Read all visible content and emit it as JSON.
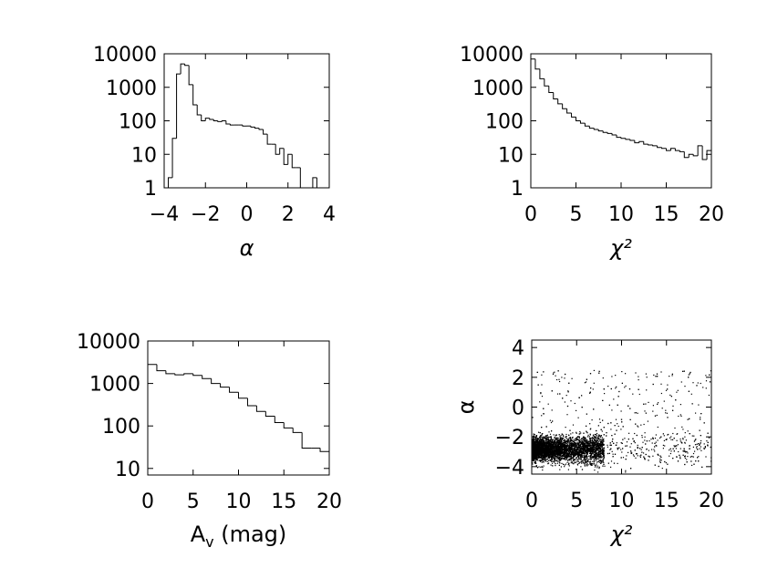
{
  "chart_data": [
    {
      "type": "bar",
      "panel": "alpha-histogram",
      "xlabel": "α",
      "ylabel": "",
      "xlim": [
        -4,
        4
      ],
      "ylim": [
        1,
        10000
      ],
      "yscale": "log",
      "xticks": [
        "−4",
        "−2",
        "0",
        "2",
        "4"
      ],
      "yticks": [
        "1",
        "10",
        "100",
        "1000",
        "10000"
      ],
      "bin_edges": [
        -4.0,
        -3.8,
        -3.6,
        -3.4,
        -3.2,
        -3.0,
        -2.8,
        -2.6,
        -2.4,
        -2.2,
        -2.0,
        -1.8,
        -1.6,
        -1.4,
        -1.2,
        -1.0,
        -0.8,
        -0.6,
        -0.4,
        -0.2,
        0.0,
        0.2,
        0.4,
        0.6,
        0.8,
        1.0,
        1.2,
        1.4,
        1.6,
        1.8,
        2.0,
        2.2,
        2.4,
        2.6,
        2.8,
        3.0,
        3.2,
        3.4,
        3.6,
        3.8,
        4.0
      ],
      "counts": [
        1,
        2,
        30,
        2500,
        5000,
        4500,
        1200,
        300,
        150,
        100,
        120,
        110,
        100,
        95,
        100,
        80,
        75,
        75,
        75,
        70,
        70,
        65,
        60,
        55,
        40,
        20,
        20,
        10,
        15,
        5,
        10,
        4,
        4,
        1,
        1,
        1,
        2,
        1,
        1,
        1
      ]
    },
    {
      "type": "bar",
      "panel": "chi2-histogram",
      "xlabel": "χ²",
      "ylabel": "",
      "xlim": [
        0,
        20
      ],
      "ylim": [
        1,
        10000
      ],
      "yscale": "log",
      "xticks": [
        "0",
        "5",
        "10",
        "15",
        "20"
      ],
      "yticks": [
        "1",
        "10",
        "100",
        "1000",
        "10000"
      ],
      "bin_edges": [
        0.0,
        0.5,
        1.0,
        1.5,
        2.0,
        2.5,
        3.0,
        3.5,
        4.0,
        4.5,
        5.0,
        5.5,
        6.0,
        6.5,
        7.0,
        7.5,
        8.0,
        8.5,
        9.0,
        9.5,
        10.0,
        10.5,
        11.0,
        11.5,
        12.0,
        12.5,
        13.0,
        13.5,
        14.0,
        14.5,
        15.0,
        15.5,
        16.0,
        16.5,
        17.0,
        17.5,
        18.0,
        18.5,
        19.0,
        19.5,
        20.0
      ],
      "counts": [
        7000,
        3500,
        1800,
        1100,
        700,
        450,
        320,
        230,
        170,
        130,
        100,
        85,
        70,
        60,
        55,
        50,
        45,
        42,
        38,
        32,
        30,
        28,
        26,
        22,
        24,
        20,
        19,
        18,
        16,
        15,
        13,
        15,
        13,
        12,
        8,
        10,
        9,
        18,
        7,
        13
      ]
    },
    {
      "type": "bar",
      "panel": "av-histogram",
      "xlabel": "Av (mag)",
      "xlabel_main": "A",
      "xlabel_sub": "v",
      "xlabel_rest": " (mag)",
      "ylabel": "",
      "xlim": [
        0,
        20
      ],
      "ylim": [
        7,
        10000
      ],
      "yscale": "log",
      "xticks": [
        "0",
        "5",
        "10",
        "15",
        "20"
      ],
      "yticks": [
        "10",
        "100",
        "1000",
        "10000"
      ],
      "bin_edges": [
        0,
        1,
        2,
        3,
        4,
        5,
        6,
        7,
        8,
        9,
        10,
        11,
        12,
        13,
        14,
        15,
        16,
        17,
        18,
        19,
        20
      ],
      "counts": [
        2800,
        2000,
        1700,
        1600,
        1700,
        1550,
        1300,
        1000,
        820,
        620,
        450,
        300,
        220,
        170,
        120,
        90,
        70,
        30,
        30,
        25
      ]
    },
    {
      "type": "scatter",
      "panel": "alpha-vs-chi2",
      "xlabel": "χ²",
      "ylabel": "α",
      "xlim": [
        0,
        20
      ],
      "ylim": [
        -4.5,
        4.5
      ],
      "xticks": [
        "0",
        "5",
        "10",
        "15",
        "20"
      ],
      "yticks": [
        "−4",
        "−2",
        "0",
        "2",
        "4"
      ],
      "point_count": 6000,
      "core": {
        "alpha_center": -2.8,
        "alpha_spread": 0.35,
        "chi2_range": [
          0,
          8
        ]
      },
      "marker_color": "#000000"
    }
  ]
}
